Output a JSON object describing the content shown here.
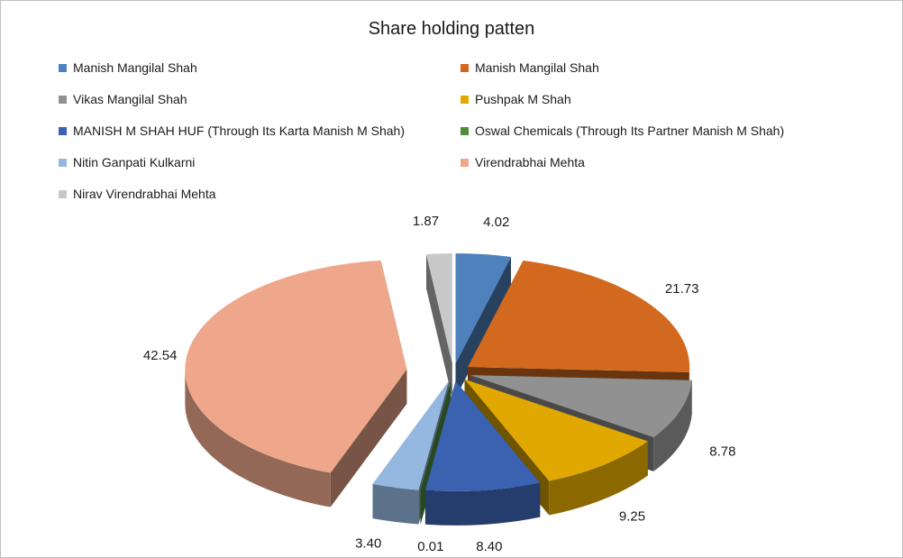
{
  "chart_data": {
    "type": "pie",
    "title": "Share holding patten",
    "three_d": true,
    "exploded": true,
    "legend_position": "top",
    "slices": [
      {
        "label": "Manish  Mangilal Shah",
        "value": 4.02,
        "display": "4.02",
        "color": "#4f81bd"
      },
      {
        "label": "Manish  Mangilal Shah",
        "value": 21.73,
        "display": "21.73",
        "color": "#d2691e"
      },
      {
        "label": "Vikas Mangilal Shah",
        "value": 8.78,
        "display": "8.78",
        "color": "#919191"
      },
      {
        "label": "Pushpak  M Shah",
        "value": 9.25,
        "display": "9.25",
        "color": "#e0a800"
      },
      {
        "label": "MANISH M SHAH HUF (Through  Its Karta Manish  M Shah)",
        "value": 8.4,
        "display": "8.40",
        "color": "#3a62b0"
      },
      {
        "label": "Oswal Chemicals (Through  Its Partner  Manish  M Shah)",
        "value": 0.01,
        "display": "0.01",
        "color": "#4f8f3a"
      },
      {
        "label": "Nitin Ganpati  Kulkarni",
        "value": 3.4,
        "display": "3.40",
        "color": "#95b8e0"
      },
      {
        "label": "Virendrabhai  Mehta",
        "value": 42.54,
        "display": "42.54",
        "color": "#eea78a"
      },
      {
        "label": "Nirav Virendrabhai  Mehta",
        "value": 1.87,
        "display": "1.87",
        "color": "#c8c8c8"
      }
    ]
  }
}
